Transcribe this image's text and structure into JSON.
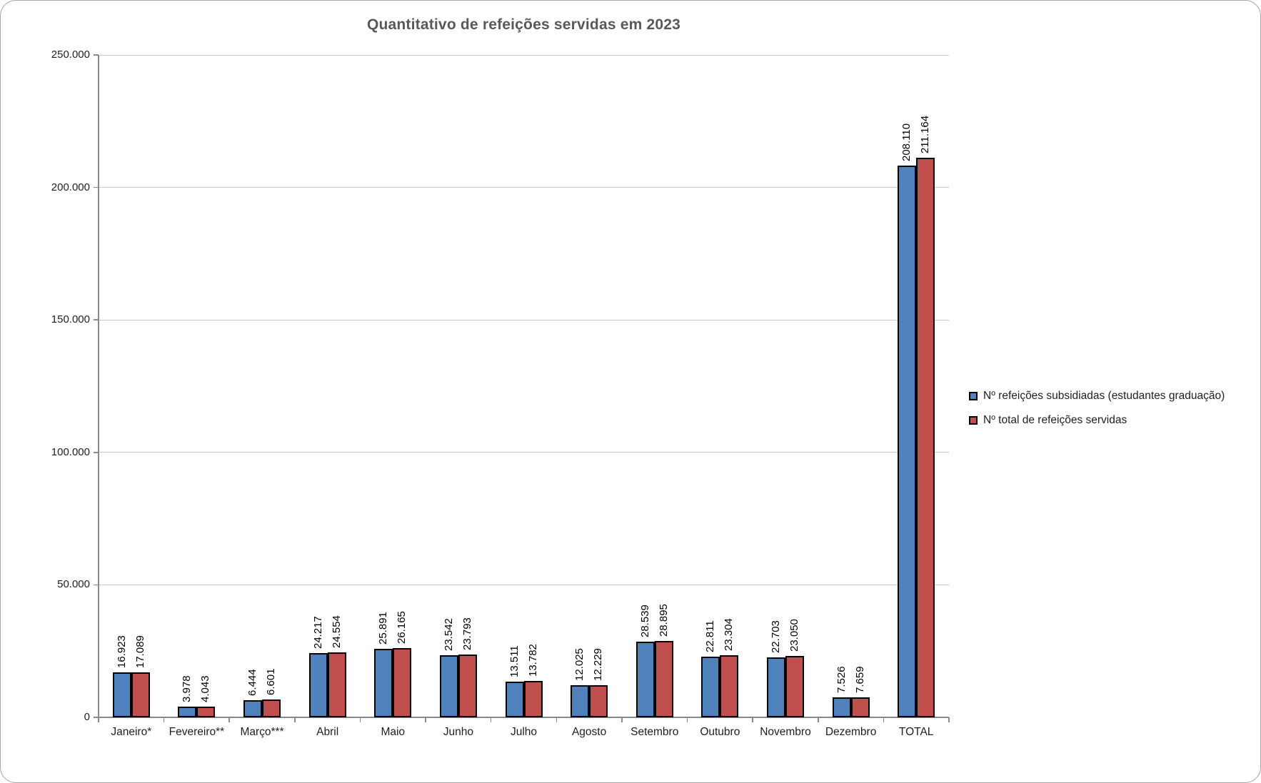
{
  "chart_data": {
    "type": "bar",
    "title": "Quantitativo de refeições servidas em 2023",
    "categories": [
      "Janeiro*",
      "Fevereiro**",
      "Março***",
      "Abril",
      "Maio",
      "Junho",
      "Julho",
      "Agosto",
      "Setembro",
      "Outubro",
      "Novembro",
      "Dezembro",
      "TOTAL"
    ],
    "series": [
      {
        "name": "Nº refeições subsidiadas (estudantes graduação)",
        "color": "#4F81BD",
        "values": [
          16923,
          3978,
          6444,
          24217,
          25891,
          23542,
          13511,
          12025,
          28539,
          22811,
          22703,
          7526,
          208110
        ]
      },
      {
        "name": "Nº total de refeições servidas",
        "color": "#C0504D",
        "values": [
          17089,
          4043,
          6601,
          24554,
          26165,
          23793,
          13782,
          12229,
          28895,
          23304,
          23050,
          7659,
          211164
        ]
      }
    ],
    "data_labels": [
      [
        "16.923",
        "3.978",
        "6.444",
        "24.217",
        "25.891",
        "23.542",
        "13.511",
        "12.025",
        "28.539",
        "22.811",
        "22.703",
        "7.526",
        "208.110"
      ],
      [
        "17.089",
        "4.043",
        "6.601",
        "24.554",
        "26.165",
        "23.793",
        "13.782",
        "12.229",
        "28.895",
        "23.304",
        "23.050",
        "7.659",
        "211.164"
      ]
    ],
    "ylim": [
      0,
      250000
    ],
    "y_tick_step": 50000,
    "y_tick_labels": [
      "0",
      "50.000",
      "100.000",
      "150.000",
      "200.000",
      "250.000"
    ],
    "grid": true,
    "legend_position": "right",
    "xlabel": "",
    "ylabel": ""
  },
  "colors": {
    "bar_blue": "#4F81BD",
    "bar_red": "#C0504D",
    "bar_border": "#000000",
    "title_text": "#595959",
    "axis_line": "#898989",
    "gridline": "#C9C9C9",
    "label_text": "#1F1F1F",
    "frame_border": "#A6A6A6"
  }
}
